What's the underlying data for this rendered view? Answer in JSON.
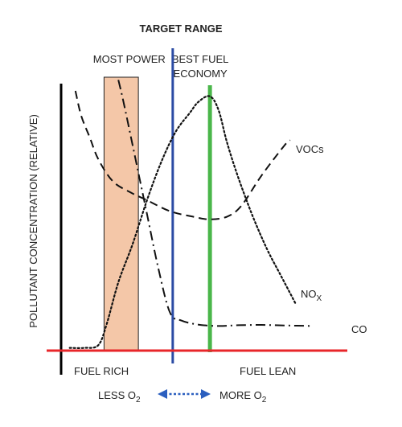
{
  "chart_data": {
    "type": "line",
    "title": "TARGET RANGE",
    "xlabel": "",
    "ylabel": "POLLUTANT CONCENTRATION (RELATIVE)",
    "x_range": [
      0,
      100
    ],
    "y_range": [
      0,
      100
    ],
    "grid": false,
    "legend": "none",
    "regions": [
      {
        "label": "MOST POWER",
        "x_start": 15,
        "x_end": 27,
        "color": "#f4c7a8"
      }
    ],
    "markers": [
      {
        "lines": [
          "BEST FUEL",
          "ECONOMY"
        ],
        "x": 52,
        "color": "#4ab64a"
      },
      {
        "label": "",
        "x": 39,
        "color": "#2b4ba4"
      }
    ],
    "bottom_labels": {
      "left": "FUEL RICH",
      "right": "FUEL LEAN",
      "left_arrow": {
        "main": "LESS O",
        "sub": "2"
      },
      "right_arrow": {
        "main": "MORE O",
        "sub": "2"
      }
    },
    "axis_colors": {
      "y_axis": "#000000",
      "baseline": "#e8262a"
    },
    "series": [
      {
        "name": "VOCs",
        "style": "dashed",
        "points": [
          [
            5,
            95
          ],
          [
            7,
            86
          ],
          [
            10,
            78
          ],
          [
            13,
            70
          ],
          [
            18,
            62
          ],
          [
            24,
            58
          ],
          [
            30,
            55
          ],
          [
            38,
            51
          ],
          [
            46,
            49
          ],
          [
            52,
            48
          ],
          [
            58,
            49
          ],
          [
            63,
            53
          ],
          [
            70,
            64
          ],
          [
            78,
            75
          ],
          [
            80,
            77
          ]
        ]
      },
      {
        "name": "NOx",
        "name_main": "NO",
        "name_sub": "X",
        "style": "dotted",
        "points": [
          [
            3,
            1
          ],
          [
            8,
            1
          ],
          [
            13,
            2
          ],
          [
            16,
            10
          ],
          [
            20,
            25
          ],
          [
            25,
            39
          ],
          [
            30,
            55
          ],
          [
            35,
            69
          ],
          [
            40,
            80
          ],
          [
            45,
            87
          ],
          [
            48,
            91
          ],
          [
            52,
            93
          ],
          [
            55,
            88
          ],
          [
            58,
            76
          ],
          [
            62,
            63
          ],
          [
            67,
            49
          ],
          [
            72,
            37
          ],
          [
            77,
            27
          ],
          [
            82,
            17
          ]
        ]
      },
      {
        "name": "CO",
        "style": "dashdot",
        "points": [
          [
            20,
            99
          ],
          [
            22,
            90
          ],
          [
            26,
            70
          ],
          [
            30,
            50
          ],
          [
            34,
            30
          ],
          [
            38,
            14
          ],
          [
            42,
            11
          ],
          [
            48,
            9.5
          ],
          [
            55,
            9
          ],
          [
            62,
            9.3
          ],
          [
            70,
            9.4
          ],
          [
            78,
            9.2
          ],
          [
            88,
            9
          ]
        ]
      }
    ]
  }
}
